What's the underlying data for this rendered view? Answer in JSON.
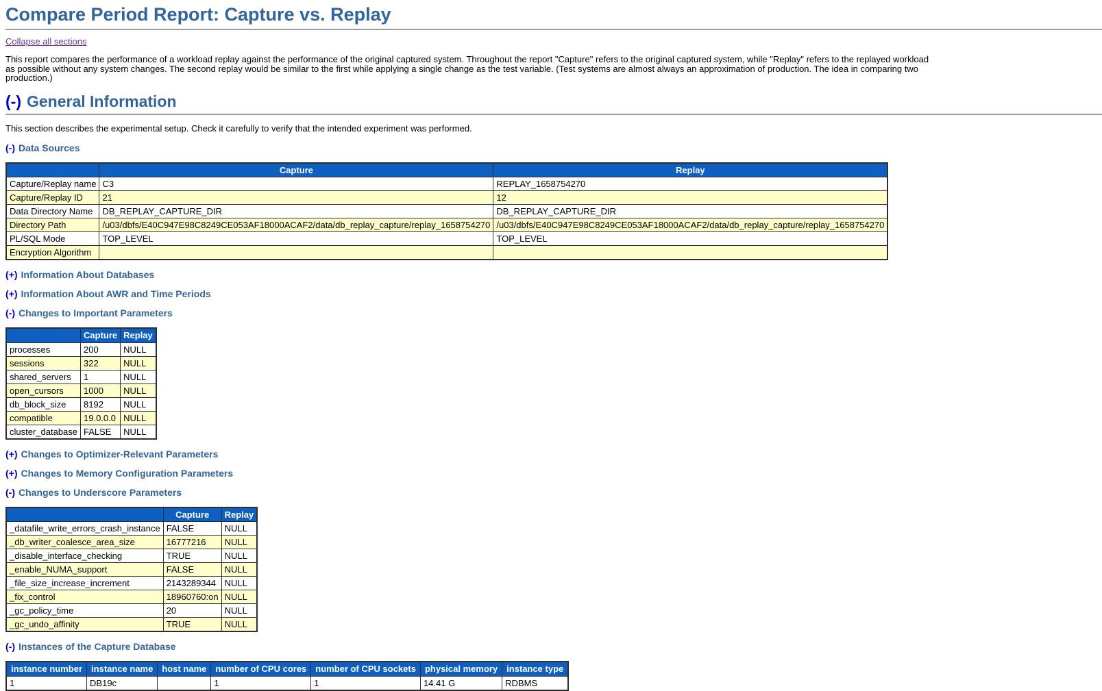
{
  "page": {
    "title": "Compare Period Report: Capture vs. Replay",
    "collapse_all_label": "Collapse all sections",
    "intro_lines": [
      "This report compares the performance of a workload replay against the performance of the original captured system. Throughout the report \"Capture\" refers to the original captured system, while \"Replay\" refers to the replayed workload",
      "as possible without any system changes. The second replay would be similar to the first while applying a single change as the test variable. (Test systems are almost always an approximation of production. The idea in comparing two",
      "production.)"
    ]
  },
  "general": {
    "toggle": "(-)",
    "title": "General Information",
    "description": "This section describes the experimental setup. Check it carefully to verify that the intended experiment was performed."
  },
  "data_sources": {
    "toggle": "(-)",
    "title": "Data Sources",
    "col_capture": "Capture",
    "col_replay": "Replay",
    "rows": [
      {
        "label": "Capture/Replay name",
        "capture": "C3",
        "replay": "REPLAY_1658754270"
      },
      {
        "label": "Capture/Replay ID",
        "capture": "21",
        "replay": "12"
      },
      {
        "label": "Data Directory Name",
        "capture": "DB_REPLAY_CAPTURE_DIR",
        "replay": "DB_REPLAY_CAPTURE_DIR"
      },
      {
        "label": "Directory Path",
        "capture": "/u03/dbfs/E40C947E98C8249CE053AF18000ACAF2/data/db_replay_capture/replay_1658754270",
        "replay": "/u03/dbfs/E40C947E98C8249CE053AF18000ACAF2/data/db_replay_capture/replay_1658754270"
      },
      {
        "label": "PL/SQL Mode",
        "capture": "TOP_LEVEL",
        "replay": "TOP_LEVEL"
      },
      {
        "label": "Encryption Algorithm",
        "capture": "",
        "replay": ""
      }
    ]
  },
  "info_databases": {
    "toggle": "(+)",
    "title": "Information About Databases"
  },
  "info_awr": {
    "toggle": "(+)",
    "title": "Information About AWR and Time Periods"
  },
  "important_params": {
    "toggle": "(-)",
    "title": "Changes to Important Parameters",
    "col_capture": "Capture",
    "col_replay": "Replay",
    "rows": [
      {
        "label": "processes",
        "capture": "200",
        "replay": "NULL"
      },
      {
        "label": "sessions",
        "capture": "322",
        "replay": "NULL"
      },
      {
        "label": "shared_servers",
        "capture": "1",
        "replay": "NULL"
      },
      {
        "label": "open_cursors",
        "capture": "1000",
        "replay": "NULL"
      },
      {
        "label": "db_block_size",
        "capture": "8192",
        "replay": "NULL"
      },
      {
        "label": "compatible",
        "capture": "19.0.0.0",
        "replay": "NULL"
      },
      {
        "label": "cluster_database",
        "capture": "FALSE",
        "replay": "NULL"
      }
    ]
  },
  "optimizer_params": {
    "toggle": "(+)",
    "title": "Changes to Optimizer-Relevant Parameters"
  },
  "memory_params": {
    "toggle": "(+)",
    "title": "Changes to Memory Configuration Parameters"
  },
  "underscore_params": {
    "toggle": "(-)",
    "title": "Changes to Underscore Parameters",
    "col_capture": "Capture",
    "col_replay": "Replay",
    "rows": [
      {
        "label": "_datafile_write_errors_crash_instance",
        "capture": "FALSE",
        "replay": "NULL"
      },
      {
        "label": "_db_writer_coalesce_area_size",
        "capture": "16777216",
        "replay": "NULL"
      },
      {
        "label": "_disable_interface_checking",
        "capture": "TRUE",
        "replay": "NULL"
      },
      {
        "label": "_enable_NUMA_support",
        "capture": "FALSE",
        "replay": "NULL"
      },
      {
        "label": "_file_size_increase_increment",
        "capture": "2143289344",
        "replay": "NULL"
      },
      {
        "label": "_fix_control",
        "capture": "18960760:on",
        "replay": "NULL"
      },
      {
        "label": "_gc_policy_time",
        "capture": "20",
        "replay": "NULL"
      },
      {
        "label": "_gc_undo_affinity",
        "capture": "TRUE",
        "replay": "NULL"
      }
    ]
  },
  "instances": {
    "toggle": "(-)",
    "title": "Instances of the Capture Database",
    "headers": [
      "instance number",
      "instance name",
      "host name",
      "number of CPU cores",
      "number of CPU sockets",
      "physical memory",
      "instance type"
    ],
    "rows": [
      [
        "1",
        "DB19c",
        "",
        "1",
        "1",
        "14.41 G",
        "RDBMS"
      ]
    ]
  },
  "colors": {
    "table_header_blue": "#0E5FC0",
    "row_alt_yellow": "#FFFFCC",
    "heading_steel_blue": "#31659C",
    "toggle_link_blue": "#0000CC",
    "visited_link_purple": "#663399"
  }
}
